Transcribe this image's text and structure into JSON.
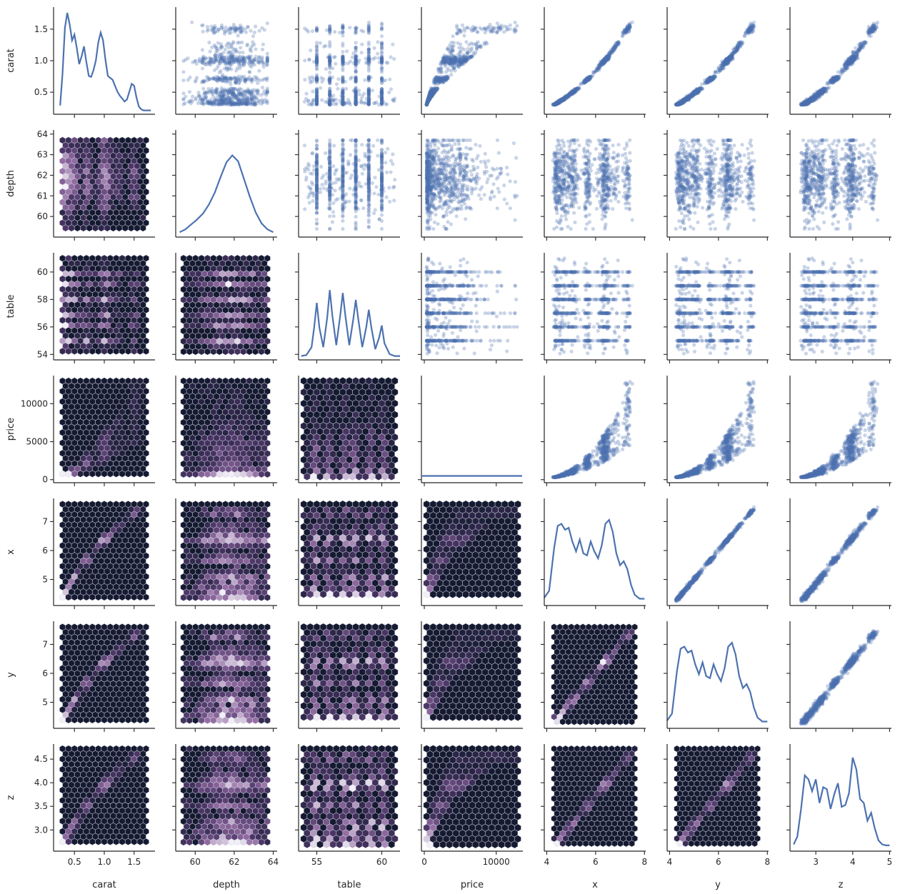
{
  "chart_data": {
    "type": "pairgrid",
    "variables": [
      "carat",
      "depth",
      "table",
      "price",
      "x",
      "y",
      "z"
    ],
    "colors": {
      "kde": "#4c72b0",
      "scatter": "#4c72b0",
      "hex_low": "#151a30",
      "hex_high": "#f2eff6",
      "hex_edge": "#cfd6e8"
    },
    "axes": {
      "carat": {
        "label": "carat",
        "lim": [
          0.15,
          1.85
        ],
        "ticks": [
          0.5,
          1.0,
          1.5
        ],
        "ticklabels": [
          "0.5",
          "1.0",
          "1.5"
        ],
        "range": [
          0.3,
          1.7
        ]
      },
      "depth": {
        "label": "depth",
        "lim": [
          59.0,
          64.2
        ],
        "ticks": [
          60,
          61,
          62,
          63,
          64
        ],
        "ticklabels": [
          "60",
          "61",
          "62",
          "63",
          "64"
        ],
        "xticks": [
          60,
          62,
          64
        ],
        "xticklabels": [
          "60",
          "62",
          "64"
        ],
        "range": [
          59.4,
          63.7
        ]
      },
      "table": {
        "label": "table",
        "lim": [
          53.6,
          61.4
        ],
        "ticks": [
          54,
          56,
          58,
          60
        ],
        "ticklabels": [
          "54",
          "56",
          "58",
          "60"
        ],
        "xticks": [
          55,
          60
        ],
        "xticklabels": [
          "55",
          "60"
        ],
        "range": [
          54,
          61
        ]
      },
      "price": {
        "label": "price",
        "lim": [
          -400,
          13700
        ],
        "ticks": [
          0,
          5000,
          10000
        ],
        "ticklabels": [
          "0",
          "5000",
          "10000"
        ],
        "xticks": [
          0,
          10000
        ],
        "xticklabels": [
          "0",
          "10000"
        ],
        "range": [
          326,
          13000
        ]
      },
      "x": {
        "label": "x",
        "lim": [
          4.1,
          7.8
        ],
        "ticks": [
          5,
          6,
          7
        ],
        "ticklabels": [
          "5",
          "6",
          "7"
        ],
        "xlim": [
          3.9,
          8.05
        ],
        "xticks": [
          4,
          6,
          8
        ],
        "xticklabels": [
          "4",
          "6",
          "8"
        ],
        "range": [
          4.3,
          7.6
        ]
      },
      "y": {
        "label": "y",
        "lim": [
          4.1,
          7.8
        ],
        "ticks": [
          5,
          6,
          7
        ],
        "ticklabels": [
          "5",
          "6",
          "7"
        ],
        "xlim": [
          3.9,
          8.05
        ],
        "xticks": [
          4,
          6,
          8
        ],
        "xticklabels": [
          "4",
          "6",
          "8"
        ],
        "range": [
          4.3,
          7.6
        ]
      },
      "z": {
        "label": "z",
        "lim": [
          2.55,
          4.82
        ],
        "ticks": [
          3.0,
          3.5,
          4.0,
          4.5
        ],
        "ticklabels": [
          "3.0",
          "3.5",
          "4.0",
          "4.5"
        ],
        "xlim": [
          2.3,
          5.05
        ],
        "xticks": [
          3,
          4,
          5
        ],
        "xticklabels": [
          "3",
          "4",
          "5"
        ],
        "range": [
          2.65,
          4.72
        ]
      }
    },
    "diagonal": {
      "type": "kde",
      "curves": {
        "carat": {
          "x": [
            0.26,
            0.3,
            0.34,
            0.38,
            0.42,
            0.46,
            0.5,
            0.54,
            0.58,
            0.62,
            0.66,
            0.7,
            0.74,
            0.78,
            0.82,
            0.86,
            0.9,
            0.94,
            0.98,
            1.02,
            1.06,
            1.1,
            1.14,
            1.18,
            1.22,
            1.26,
            1.3,
            1.34,
            1.38,
            1.42,
            1.46,
            1.5,
            1.54,
            1.58,
            1.62,
            1.66,
            1.7,
            1.74,
            1.78
          ],
          "y": [
            0.06,
            0.38,
            0.85,
            1.0,
            0.88,
            0.72,
            0.78,
            0.64,
            0.48,
            0.56,
            0.66,
            0.5,
            0.36,
            0.35,
            0.42,
            0.52,
            0.7,
            0.8,
            0.72,
            0.52,
            0.36,
            0.34,
            0.32,
            0.26,
            0.2,
            0.16,
            0.13,
            0.1,
            0.12,
            0.2,
            0.28,
            0.26,
            0.14,
            0.05,
            0.02,
            0.01,
            0.01,
            0.01,
            0.01
          ]
        },
        "depth": {
          "x": [
            59.2,
            59.5,
            59.8,
            60.1,
            60.4,
            60.7,
            61.0,
            61.3,
            61.6,
            61.9,
            62.2,
            62.5,
            62.8,
            63.1,
            63.4,
            63.7,
            64.0
          ],
          "y": [
            0.02,
            0.05,
            0.1,
            0.15,
            0.21,
            0.3,
            0.42,
            0.58,
            0.73,
            0.8,
            0.74,
            0.56,
            0.38,
            0.22,
            0.11,
            0.05,
            0.02
          ]
        },
        "table": {
          "x": [
            53.8,
            54.2,
            54.6,
            54.8,
            55.0,
            55.2,
            55.5,
            55.8,
            56.0,
            56.2,
            56.5,
            56.8,
            57.0,
            57.2,
            57.5,
            57.8,
            58.0,
            58.2,
            58.5,
            58.8,
            59.0,
            59.2,
            59.5,
            59.8,
            60.0,
            60.2,
            60.6,
            61.0,
            61.4
          ],
          "y": [
            0.01,
            0.02,
            0.1,
            0.3,
            0.55,
            0.3,
            0.1,
            0.4,
            0.68,
            0.42,
            0.12,
            0.42,
            0.65,
            0.42,
            0.12,
            0.38,
            0.58,
            0.38,
            0.1,
            0.3,
            0.48,
            0.3,
            0.08,
            0.2,
            0.32,
            0.14,
            0.03,
            0.01,
            0.01
          ]
        },
        "price": {
          "x": [
            -300,
            13600
          ],
          "y": [
            0.04,
            0.04
          ]
        },
        "x": {
          "x": [
            3.9,
            4.1,
            4.3,
            4.45,
            4.6,
            4.75,
            4.9,
            5.05,
            5.2,
            5.35,
            5.5,
            5.65,
            5.8,
            5.95,
            6.1,
            6.25,
            6.4,
            6.55,
            6.7,
            6.85,
            7.0,
            7.15,
            7.3,
            7.45,
            7.6,
            7.8,
            8.0
          ],
          "y": [
            0.05,
            0.12,
            0.55,
            0.78,
            0.8,
            0.74,
            0.76,
            0.62,
            0.52,
            0.64,
            0.5,
            0.48,
            0.62,
            0.52,
            0.45,
            0.58,
            0.8,
            0.84,
            0.72,
            0.5,
            0.38,
            0.42,
            0.34,
            0.18,
            0.08,
            0.04,
            0.04
          ]
        },
        "y": {
          "x": [
            3.9,
            4.1,
            4.3,
            4.45,
            4.6,
            4.75,
            4.9,
            5.05,
            5.2,
            5.35,
            5.5,
            5.65,
            5.8,
            5.95,
            6.1,
            6.25,
            6.4,
            6.55,
            6.7,
            6.85,
            7.0,
            7.15,
            7.3,
            7.45,
            7.6,
            7.8,
            8.0
          ],
          "y": [
            0.05,
            0.12,
            0.55,
            0.78,
            0.8,
            0.74,
            0.76,
            0.62,
            0.52,
            0.64,
            0.5,
            0.48,
            0.62,
            0.52,
            0.45,
            0.58,
            0.8,
            0.84,
            0.72,
            0.5,
            0.38,
            0.42,
            0.34,
            0.18,
            0.08,
            0.04,
            0.04
          ]
        },
        "z": {
          "x": [
            2.4,
            2.5,
            2.6,
            2.7,
            2.8,
            2.9,
            3.0,
            3.1,
            3.2,
            3.3,
            3.4,
            3.5,
            3.6,
            3.7,
            3.8,
            3.9,
            4.0,
            4.1,
            4.2,
            4.3,
            4.4,
            4.5,
            4.6,
            4.7,
            4.8,
            4.9,
            5.0
          ],
          "y": [
            0.04,
            0.12,
            0.4,
            0.74,
            0.7,
            0.58,
            0.7,
            0.46,
            0.62,
            0.6,
            0.4,
            0.55,
            0.66,
            0.42,
            0.44,
            0.56,
            0.92,
            0.8,
            0.5,
            0.46,
            0.28,
            0.36,
            0.2,
            0.08,
            0.04,
            0.03,
            0.03
          ]
        }
      }
    },
    "upper": {
      "type": "scatter",
      "alpha": 0.3
    },
    "lower": {
      "type": "hexbin",
      "gridsize": 15
    }
  }
}
